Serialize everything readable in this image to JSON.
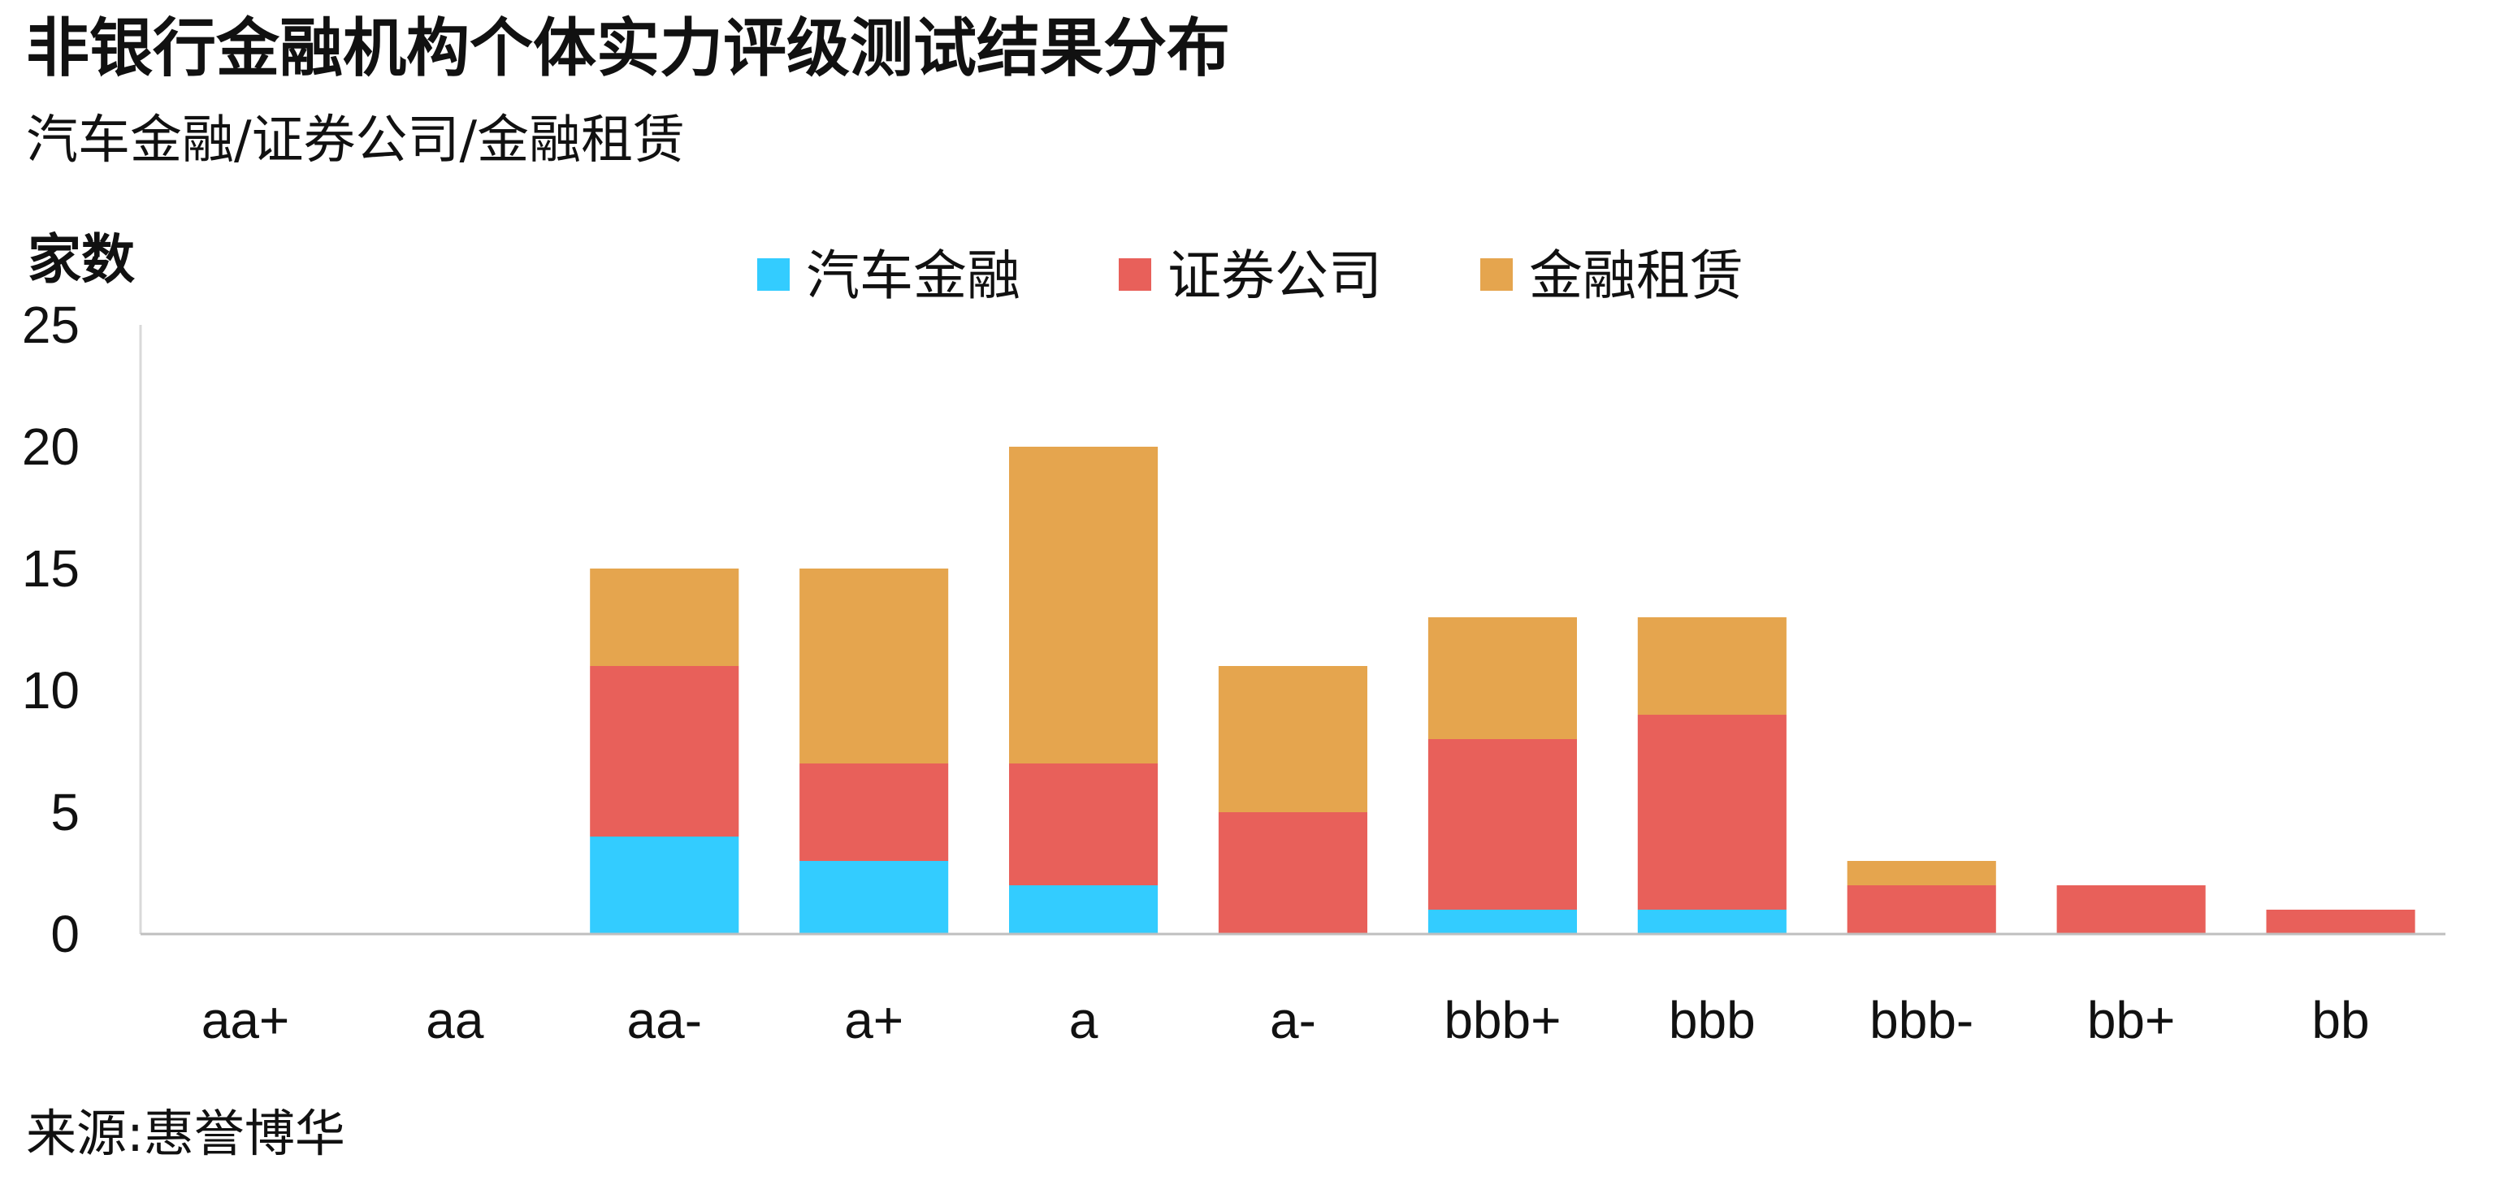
{
  "title": "非银行金融机构个体实力评级测试结果分布",
  "subtitle": "汽车金融/证券公司/金融租赁",
  "source": "来源:惠誉博华",
  "chart_data": {
    "type": "bar",
    "stacked": true,
    "ylabel": "家数",
    "xlabel": "",
    "ylim": [
      0,
      25
    ],
    "yticks": [
      "0",
      "5",
      "10",
      "15",
      "20",
      "25"
    ],
    "legend_position": "top",
    "grid": false,
    "categories": [
      "aa+",
      "aa",
      "aa-",
      "a+",
      "a",
      "a-",
      "bbb+",
      "bbb",
      "bbb-",
      "bb+",
      "bb"
    ],
    "series": [
      {
        "name": "汽车金融",
        "color": "#33CCFF",
        "values": [
          0,
          0,
          4,
          3,
          2,
          0,
          1,
          1,
          0,
          0,
          0
        ]
      },
      {
        "name": "证券公司",
        "color": "#E8605A",
        "values": [
          0,
          0,
          7,
          4,
          5,
          5,
          7,
          8,
          2,
          2,
          1
        ]
      },
      {
        "name": "金融租赁",
        "color": "#E5A54E",
        "values": [
          0,
          0,
          4,
          8,
          13,
          6,
          5,
          4,
          1,
          0,
          0
        ]
      }
    ]
  }
}
